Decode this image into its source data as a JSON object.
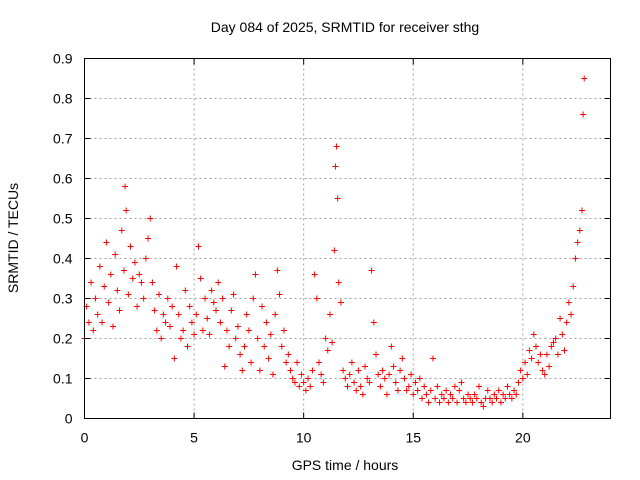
{
  "chart_data": {
    "type": "scatter",
    "title": "Day 084 of 2025, SRMTID for receiver sthg",
    "xlabel": "GPS time / hours",
    "ylabel": "SRMTID / TECUs",
    "xlim": [
      0,
      24
    ],
    "ylim": [
      0,
      0.9
    ],
    "xticks": [
      0,
      5,
      10,
      15,
      20
    ],
    "yticks": [
      0,
      0.1,
      0.2,
      0.3,
      0.4,
      0.5,
      0.6,
      0.7,
      0.8,
      0.9
    ],
    "xtick_labels": [
      "0",
      "5",
      "10",
      "15",
      "20"
    ],
    "ytick_labels": [
      "0",
      "0.1",
      "0.2",
      "0.3",
      "0.4",
      "0.5",
      "0.6",
      "0.7",
      "0.8",
      "0.9"
    ],
    "grid": true,
    "marker": "+",
    "color": "#ff0000",
    "series": [
      {
        "name": "SRMTID",
        "x": [
          0.0,
          0.1,
          0.2,
          0.3,
          0.4,
          0.5,
          0.6,
          0.7,
          0.8,
          0.9,
          1.0,
          1.1,
          1.2,
          1.3,
          1.4,
          1.5,
          1.6,
          1.7,
          1.8,
          1.85,
          1.9,
          2.0,
          2.1,
          2.2,
          2.3,
          2.4,
          2.5,
          2.6,
          2.7,
          2.8,
          2.9,
          3.0,
          3.1,
          3.2,
          3.3,
          3.4,
          3.5,
          3.6,
          3.7,
          3.8,
          3.9,
          4.0,
          4.1,
          4.2,
          4.3,
          4.4,
          4.5,
          4.6,
          4.7,
          4.8,
          4.9,
          5.0,
          5.1,
          5.2,
          5.3,
          5.4,
          5.5,
          5.6,
          5.7,
          5.8,
          5.9,
          6.0,
          6.1,
          6.2,
          6.3,
          6.4,
          6.5,
          6.6,
          6.7,
          6.8,
          6.9,
          7.0,
          7.1,
          7.2,
          7.3,
          7.4,
          7.5,
          7.6,
          7.7,
          7.8,
          7.9,
          8.0,
          8.1,
          8.2,
          8.3,
          8.4,
          8.5,
          8.6,
          8.7,
          8.8,
          8.9,
          9.0,
          9.1,
          9.2,
          9.3,
          9.4,
          9.5,
          9.6,
          9.7,
          9.8,
          9.9,
          10.0,
          10.1,
          10.2,
          10.3,
          10.4,
          10.5,
          10.6,
          10.7,
          10.8,
          10.9,
          11.0,
          11.1,
          11.2,
          11.3,
          11.4,
          11.45,
          11.5,
          11.55,
          11.6,
          11.7,
          11.8,
          11.9,
          12.0,
          12.1,
          12.2,
          12.3,
          12.4,
          12.5,
          12.6,
          12.7,
          12.8,
          12.9,
          13.0,
          13.1,
          13.2,
          13.3,
          13.4,
          13.5,
          13.6,
          13.7,
          13.8,
          13.9,
          14.0,
          14.1,
          14.2,
          14.3,
          14.4,
          14.5,
          14.6,
          14.7,
          14.8,
          14.9,
          15.0,
          15.1,
          15.2,
          15.3,
          15.4,
          15.5,
          15.6,
          15.7,
          15.8,
          15.9,
          16.0,
          16.1,
          16.2,
          16.3,
          16.4,
          16.5,
          16.6,
          16.7,
          16.8,
          16.9,
          17.0,
          17.1,
          17.2,
          17.3,
          17.4,
          17.5,
          17.6,
          17.7,
          17.8,
          17.9,
          18.0,
          18.1,
          18.2,
          18.3,
          18.4,
          18.5,
          18.6,
          18.7,
          18.8,
          18.9,
          19.0,
          19.1,
          19.2,
          19.3,
          19.4,
          19.5,
          19.6,
          19.7,
          19.8,
          19.9,
          20.0,
          20.1,
          20.2,
          20.3,
          20.4,
          20.5,
          20.6,
          20.7,
          20.8,
          20.9,
          21.0,
          21.1,
          21.2,
          21.3,
          21.4,
          21.5,
          21.6,
          21.7,
          21.8,
          21.9,
          22.0,
          22.1,
          22.2,
          22.3,
          22.4,
          22.5,
          22.6,
          22.7,
          22.75,
          22.8
        ],
        "y": [
          0.2,
          0.28,
          0.24,
          0.34,
          0.22,
          0.3,
          0.26,
          0.38,
          0.24,
          0.33,
          0.44,
          0.29,
          0.36,
          0.23,
          0.41,
          0.32,
          0.27,
          0.47,
          0.37,
          0.58,
          0.52,
          0.31,
          0.43,
          0.35,
          0.39,
          0.28,
          0.36,
          0.34,
          0.3,
          0.4,
          0.45,
          0.5,
          0.34,
          0.27,
          0.22,
          0.31,
          0.2,
          0.26,
          0.24,
          0.3,
          0.23,
          0.28,
          0.15,
          0.38,
          0.26,
          0.2,
          0.22,
          0.32,
          0.18,
          0.28,
          0.24,
          0.21,
          0.26,
          0.43,
          0.35,
          0.22,
          0.3,
          0.25,
          0.21,
          0.32,
          0.29,
          0.27,
          0.34,
          0.24,
          0.3,
          0.13,
          0.22,
          0.18,
          0.27,
          0.31,
          0.2,
          0.23,
          0.16,
          0.12,
          0.18,
          0.26,
          0.22,
          0.14,
          0.3,
          0.36,
          0.2,
          0.12,
          0.28,
          0.18,
          0.24,
          0.15,
          0.21,
          0.11,
          0.26,
          0.37,
          0.31,
          0.18,
          0.22,
          0.14,
          0.16,
          0.12,
          0.1,
          0.09,
          0.14,
          0.08,
          0.11,
          0.09,
          0.07,
          0.1,
          0.08,
          0.12,
          0.36,
          0.3,
          0.14,
          0.11,
          0.09,
          0.2,
          0.17,
          0.26,
          0.19,
          0.42,
          0.63,
          0.68,
          0.55,
          0.34,
          0.29,
          0.12,
          0.1,
          0.08,
          0.11,
          0.14,
          0.09,
          0.07,
          0.12,
          0.08,
          0.06,
          0.13,
          0.1,
          0.09,
          0.37,
          0.24,
          0.16,
          0.11,
          0.08,
          0.12,
          0.1,
          0.06,
          0.11,
          0.18,
          0.13,
          0.09,
          0.07,
          0.12,
          0.15,
          0.1,
          0.07,
          0.08,
          0.11,
          0.06,
          0.09,
          0.07,
          0.1,
          0.05,
          0.08,
          0.06,
          0.04,
          0.07,
          0.15,
          0.05,
          0.08,
          0.04,
          0.06,
          0.05,
          0.07,
          0.04,
          0.06,
          0.05,
          0.08,
          0.04,
          0.07,
          0.09,
          0.05,
          0.04,
          0.06,
          0.05,
          0.04,
          0.06,
          0.05,
          0.08,
          0.04,
          0.03,
          0.05,
          0.07,
          0.05,
          0.04,
          0.06,
          0.05,
          0.07,
          0.04,
          0.06,
          0.05,
          0.08,
          0.06,
          0.05,
          0.07,
          0.06,
          0.09,
          0.12,
          0.1,
          0.14,
          0.11,
          0.17,
          0.15,
          0.21,
          0.18,
          0.14,
          0.16,
          0.12,
          0.11,
          0.16,
          0.13,
          0.18,
          0.19,
          0.2,
          0.16,
          0.25,
          0.21,
          0.17,
          0.24,
          0.29,
          0.26,
          0.33,
          0.4,
          0.44,
          0.47,
          0.52,
          0.76,
          0.85
        ]
      }
    ]
  }
}
